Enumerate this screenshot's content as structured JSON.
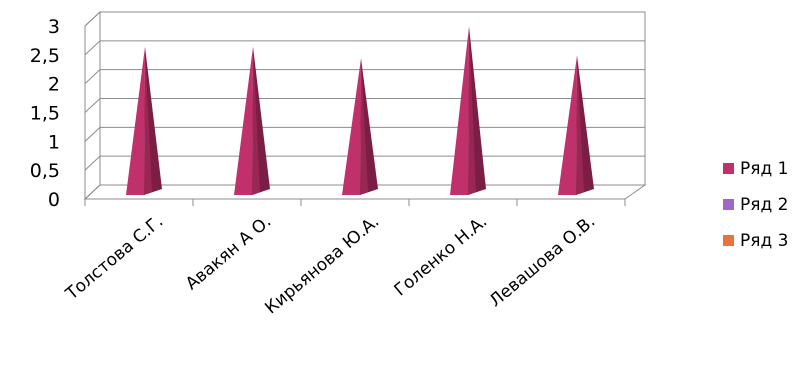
{
  "chart_data": {
    "type": "bar",
    "style": "3d-pyramid",
    "categories": [
      "Толстова С.Г.",
      "Авакян А О.",
      "Кирьянова Ю.А.",
      "Голенко Н.А.",
      "Левашова О.В."
    ],
    "series": [
      {
        "name": "Ряд 1",
        "values": [
          2.5,
          2.5,
          2.3,
          2.85,
          2.35
        ],
        "color": "#C0306A"
      },
      {
        "name": "Ряд 2",
        "values": [
          0,
          0,
          0,
          0,
          0
        ],
        "color": "#A066C8"
      },
      {
        "name": "Ряд 3",
        "values": [
          0,
          0,
          0,
          0,
          0
        ],
        "color": "#E8743B"
      }
    ],
    "yticks": [
      "0",
      "0,5",
      "1",
      "1,5",
      "2",
      "2,5",
      "3"
    ],
    "ylim": [
      0,
      3
    ],
    "grid": true,
    "legend_position": "right"
  }
}
